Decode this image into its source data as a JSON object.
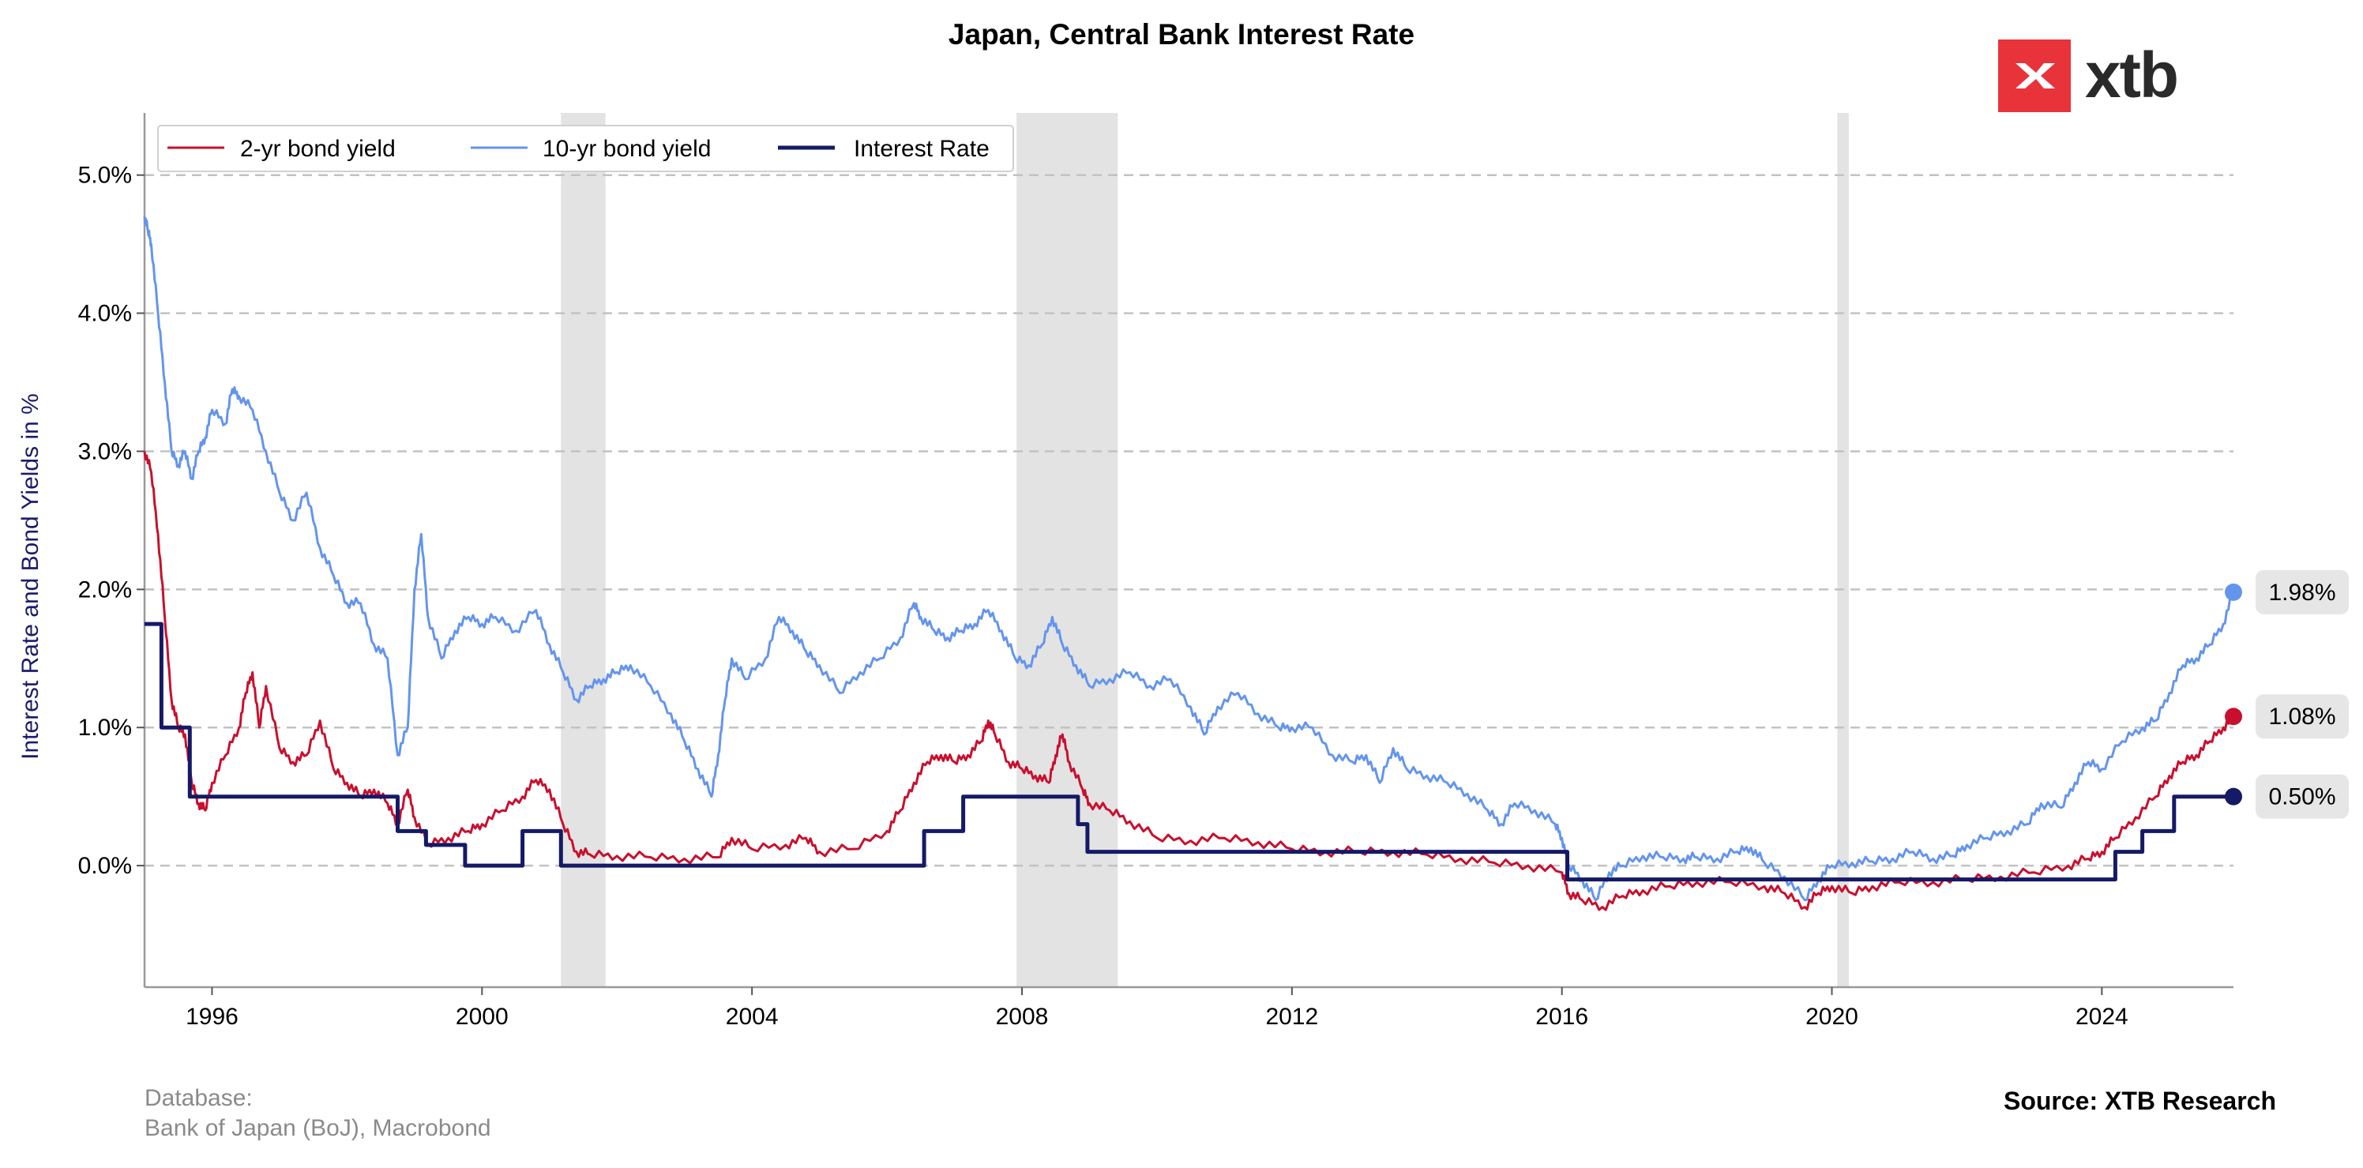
{
  "chart_data": {
    "type": "line",
    "title": "Japan, Central Bank Interest Rate",
    "ylabel": "Interest Rate and Bond Yields in %",
    "xlabel": "",
    "xlim": [
      1995.0,
      2025.95
    ],
    "ylim": [
      -0.88,
      5.45
    ],
    "x_ticks": [
      1996,
      2000,
      2004,
      2008,
      2012,
      2016,
      2020,
      2024
    ],
    "x_tick_labels": [
      "1996",
      "2000",
      "2004",
      "2008",
      "2012",
      "2016",
      "2020",
      "2024"
    ],
    "y_ticks": [
      0,
      1,
      2,
      3,
      4,
      5
    ],
    "y_tick_labels": [
      "0.0%",
      "1.0%",
      "2.0%",
      "3.0%",
      "4.0%",
      "5.0%"
    ],
    "grid": "horizontal dashed",
    "legend_position": "top-left",
    "shaded_periods": [
      [
        2001.17,
        2001.83
      ],
      [
        2007.92,
        2009.42
      ],
      [
        2020.08,
        2020.25
      ]
    ],
    "series": [
      {
        "name": "2-yr bond yield",
        "color": "#c8102e",
        "style": "line",
        "last_value_label": "1.08%",
        "points": [
          [
            1995.0,
            3.0
          ],
          [
            1995.1,
            2.85
          ],
          [
            1995.2,
            2.4
          ],
          [
            1995.3,
            1.8
          ],
          [
            1995.4,
            1.2
          ],
          [
            1995.5,
            1.0
          ],
          [
            1995.6,
            0.95
          ],
          [
            1995.7,
            0.6
          ],
          [
            1995.8,
            0.45
          ],
          [
            1995.9,
            0.4
          ],
          [
            1996.0,
            0.6
          ],
          [
            1996.2,
            0.8
          ],
          [
            1996.4,
            1.0
          ],
          [
            1996.5,
            1.25
          ],
          [
            1996.6,
            1.4
          ],
          [
            1996.7,
            1.0
          ],
          [
            1996.8,
            1.3
          ],
          [
            1997.0,
            0.85
          ],
          [
            1997.2,
            0.75
          ],
          [
            1997.4,
            0.8
          ],
          [
            1997.6,
            1.05
          ],
          [
            1997.8,
            0.7
          ],
          [
            1998.0,
            0.6
          ],
          [
            1998.2,
            0.5
          ],
          [
            1998.4,
            0.55
          ],
          [
            1998.6,
            0.45
          ],
          [
            1998.75,
            0.3
          ],
          [
            1998.9,
            0.55
          ],
          [
            1999.0,
            0.35
          ],
          [
            1999.2,
            0.15
          ],
          [
            1999.5,
            0.2
          ],
          [
            1999.8,
            0.25
          ],
          [
            2000.0,
            0.3
          ],
          [
            2000.3,
            0.4
          ],
          [
            2000.6,
            0.5
          ],
          [
            2000.8,
            0.62
          ],
          [
            2001.0,
            0.55
          ],
          [
            2001.2,
            0.3
          ],
          [
            2001.4,
            0.1
          ],
          [
            2001.6,
            0.08
          ],
          [
            2002.0,
            0.07
          ],
          [
            2002.5,
            0.06
          ],
          [
            2003.0,
            0.05
          ],
          [
            2003.5,
            0.06
          ],
          [
            2003.7,
            0.2
          ],
          [
            2004.0,
            0.12
          ],
          [
            2004.5,
            0.15
          ],
          [
            2004.8,
            0.2
          ],
          [
            2005.0,
            0.1
          ],
          [
            2005.5,
            0.12
          ],
          [
            2006.0,
            0.25
          ],
          [
            2006.2,
            0.4
          ],
          [
            2006.4,
            0.6
          ],
          [
            2006.6,
            0.75
          ],
          [
            2006.8,
            0.8
          ],
          [
            2007.0,
            0.75
          ],
          [
            2007.2,
            0.8
          ],
          [
            2007.4,
            0.9
          ],
          [
            2007.5,
            1.05
          ],
          [
            2007.6,
            0.95
          ],
          [
            2007.8,
            0.75
          ],
          [
            2008.0,
            0.7
          ],
          [
            2008.2,
            0.65
          ],
          [
            2008.4,
            0.6
          ],
          [
            2008.5,
            0.8
          ],
          [
            2008.6,
            0.95
          ],
          [
            2008.7,
            0.75
          ],
          [
            2008.9,
            0.55
          ],
          [
            2009.0,
            0.45
          ],
          [
            2009.3,
            0.4
          ],
          [
            2009.6,
            0.32
          ],
          [
            2010.0,
            0.2
          ],
          [
            2010.5,
            0.18
          ],
          [
            2011.0,
            0.2
          ],
          [
            2011.5,
            0.17
          ],
          [
            2012.0,
            0.12
          ],
          [
            2012.5,
            0.1
          ],
          [
            2013.0,
            0.1
          ],
          [
            2013.5,
            0.1
          ],
          [
            2014.0,
            0.08
          ],
          [
            2014.5,
            0.05
          ],
          [
            2015.0,
            0.02
          ],
          [
            2015.5,
            0.0
          ],
          [
            2016.0,
            -0.05
          ],
          [
            2016.1,
            -0.2
          ],
          [
            2016.3,
            -0.25
          ],
          [
            2016.6,
            -0.3
          ],
          [
            2016.9,
            -0.22
          ],
          [
            2017.2,
            -0.18
          ],
          [
            2017.6,
            -0.15
          ],
          [
            2018.0,
            -0.12
          ],
          [
            2018.5,
            -0.12
          ],
          [
            2019.0,
            -0.15
          ],
          [
            2019.3,
            -0.2
          ],
          [
            2019.6,
            -0.3
          ],
          [
            2019.8,
            -0.2
          ],
          [
            2020.0,
            -0.15
          ],
          [
            2020.3,
            -0.2
          ],
          [
            2020.6,
            -0.15
          ],
          [
            2021.0,
            -0.12
          ],
          [
            2021.5,
            -0.12
          ],
          [
            2022.0,
            -0.1
          ],
          [
            2022.5,
            -0.08
          ],
          [
            2023.0,
            -0.05
          ],
          [
            2023.5,
            0.0
          ],
          [
            2023.8,
            0.05
          ],
          [
            2024.0,
            0.1
          ],
          [
            2024.2,
            0.2
          ],
          [
            2024.5,
            0.35
          ],
          [
            2024.8,
            0.5
          ],
          [
            2025.0,
            0.65
          ],
          [
            2025.2,
            0.75
          ],
          [
            2025.4,
            0.8
          ],
          [
            2025.6,
            0.9
          ],
          [
            2025.8,
            1.0
          ],
          [
            2025.95,
            1.08
          ]
        ]
      },
      {
        "name": "10-yr bond yield",
        "color": "#6495ed",
        "style": "line",
        "last_value_label": "1.98%",
        "points": [
          [
            1995.0,
            4.7
          ],
          [
            1995.05,
            4.6
          ],
          [
            1995.1,
            4.5
          ],
          [
            1995.2,
            4.0
          ],
          [
            1995.3,
            3.5
          ],
          [
            1995.4,
            3.0
          ],
          [
            1995.5,
            2.9
          ],
          [
            1995.6,
            3.0
          ],
          [
            1995.7,
            2.8
          ],
          [
            1995.8,
            3.0
          ],
          [
            1995.9,
            3.1
          ],
          [
            1996.0,
            3.3
          ],
          [
            1996.2,
            3.2
          ],
          [
            1996.3,
            3.45
          ],
          [
            1996.4,
            3.4
          ],
          [
            1996.6,
            3.3
          ],
          [
            1996.8,
            3.0
          ],
          [
            1997.0,
            2.7
          ],
          [
            1997.2,
            2.5
          ],
          [
            1997.4,
            2.7
          ],
          [
            1997.6,
            2.3
          ],
          [
            1997.8,
            2.1
          ],
          [
            1998.0,
            1.9
          ],
          [
            1998.2,
            1.9
          ],
          [
            1998.4,
            1.6
          ],
          [
            1998.6,
            1.5
          ],
          [
            1998.75,
            0.8
          ],
          [
            1998.9,
            1.0
          ],
          [
            1999.0,
            2.0
          ],
          [
            1999.1,
            2.4
          ],
          [
            1999.2,
            1.8
          ],
          [
            1999.4,
            1.5
          ],
          [
            1999.6,
            1.7
          ],
          [
            1999.8,
            1.8
          ],
          [
            2000.0,
            1.75
          ],
          [
            2000.2,
            1.8
          ],
          [
            2000.5,
            1.7
          ],
          [
            2000.8,
            1.85
          ],
          [
            2001.0,
            1.6
          ],
          [
            2001.2,
            1.4
          ],
          [
            2001.4,
            1.2
          ],
          [
            2001.6,
            1.3
          ],
          [
            2001.8,
            1.35
          ],
          [
            2002.0,
            1.4
          ],
          [
            2002.2,
            1.45
          ],
          [
            2002.5,
            1.3
          ],
          [
            2002.8,
            1.1
          ],
          [
            2003.0,
            0.9
          ],
          [
            2003.2,
            0.7
          ],
          [
            2003.4,
            0.5
          ],
          [
            2003.5,
            0.8
          ],
          [
            2003.6,
            1.2
          ],
          [
            2003.7,
            1.5
          ],
          [
            2003.9,
            1.35
          ],
          [
            2004.2,
            1.5
          ],
          [
            2004.4,
            1.8
          ],
          [
            2004.6,
            1.7
          ],
          [
            2004.8,
            1.55
          ],
          [
            2005.0,
            1.45
          ],
          [
            2005.3,
            1.25
          ],
          [
            2005.6,
            1.4
          ],
          [
            2005.9,
            1.5
          ],
          [
            2006.2,
            1.65
          ],
          [
            2006.4,
            1.9
          ],
          [
            2006.5,
            1.8
          ],
          [
            2006.7,
            1.7
          ],
          [
            2006.9,
            1.65
          ],
          [
            2007.1,
            1.7
          ],
          [
            2007.3,
            1.75
          ],
          [
            2007.5,
            1.85
          ],
          [
            2007.7,
            1.7
          ],
          [
            2007.9,
            1.5
          ],
          [
            2008.1,
            1.45
          ],
          [
            2008.3,
            1.6
          ],
          [
            2008.45,
            1.8
          ],
          [
            2008.6,
            1.6
          ],
          [
            2008.8,
            1.45
          ],
          [
            2009.0,
            1.3
          ],
          [
            2009.3,
            1.35
          ],
          [
            2009.6,
            1.4
          ],
          [
            2009.9,
            1.3
          ],
          [
            2010.2,
            1.35
          ],
          [
            2010.5,
            1.15
          ],
          [
            2010.7,
            0.95
          ],
          [
            2010.9,
            1.15
          ],
          [
            2011.2,
            1.25
          ],
          [
            2011.5,
            1.1
          ],
          [
            2011.8,
            1.0
          ],
          [
            2012.0,
            1.0
          ],
          [
            2012.3,
            1.0
          ],
          [
            2012.6,
            0.8
          ],
          [
            2012.9,
            0.75
          ],
          [
            2013.1,
            0.8
          ],
          [
            2013.3,
            0.6
          ],
          [
            2013.5,
            0.85
          ],
          [
            2013.7,
            0.7
          ],
          [
            2014.0,
            0.65
          ],
          [
            2014.3,
            0.6
          ],
          [
            2014.6,
            0.52
          ],
          [
            2014.9,
            0.4
          ],
          [
            2015.1,
            0.3
          ],
          [
            2015.3,
            0.45
          ],
          [
            2015.6,
            0.4
          ],
          [
            2015.9,
            0.3
          ],
          [
            2016.0,
            0.2
          ],
          [
            2016.1,
            0.0
          ],
          [
            2016.3,
            -0.1
          ],
          [
            2016.5,
            -0.25
          ],
          [
            2016.7,
            -0.05
          ],
          [
            2016.9,
            0.0
          ],
          [
            2017.2,
            0.07
          ],
          [
            2017.5,
            0.06
          ],
          [
            2017.8,
            0.05
          ],
          [
            2018.0,
            0.06
          ],
          [
            2018.3,
            0.05
          ],
          [
            2018.6,
            0.1
          ],
          [
            2018.8,
            0.13
          ],
          [
            2019.0,
            0.02
          ],
          [
            2019.3,
            -0.08
          ],
          [
            2019.6,
            -0.25
          ],
          [
            2019.8,
            -0.1
          ],
          [
            2020.0,
            0.0
          ],
          [
            2020.3,
            0.02
          ],
          [
            2020.6,
            0.03
          ],
          [
            2020.9,
            0.05
          ],
          [
            2021.2,
            0.1
          ],
          [
            2021.5,
            0.05
          ],
          [
            2021.8,
            0.07
          ],
          [
            2022.0,
            0.15
          ],
          [
            2022.3,
            0.2
          ],
          [
            2022.6,
            0.25
          ],
          [
            2022.9,
            0.3
          ],
          [
            2023.1,
            0.45
          ],
          [
            2023.4,
            0.42
          ],
          [
            2023.6,
            0.6
          ],
          [
            2023.8,
            0.75
          ],
          [
            2024.0,
            0.7
          ],
          [
            2024.3,
            0.9
          ],
          [
            2024.6,
            1.0
          ],
          [
            2024.8,
            1.05
          ],
          [
            2025.0,
            1.25
          ],
          [
            2025.2,
            1.45
          ],
          [
            2025.4,
            1.5
          ],
          [
            2025.6,
            1.6
          ],
          [
            2025.8,
            1.75
          ],
          [
            2025.95,
            1.98
          ]
        ]
      },
      {
        "name": "Interest Rate",
        "color": "#141a66",
        "style": "step",
        "last_value_label": "0.50%",
        "points": [
          [
            1995.0,
            1.75
          ],
          [
            1995.25,
            1.75
          ],
          [
            1995.25,
            1.0
          ],
          [
            1995.67,
            1.0
          ],
          [
            1995.67,
            0.5
          ],
          [
            1998.75,
            0.5
          ],
          [
            1998.75,
            0.25
          ],
          [
            1999.17,
            0.25
          ],
          [
            1999.17,
            0.15
          ],
          [
            1999.75,
            0.15
          ],
          [
            1999.75,
            0.0
          ],
          [
            2000.6,
            0.0
          ],
          [
            2000.6,
            0.25
          ],
          [
            2001.17,
            0.25
          ],
          [
            2001.17,
            0.0
          ],
          [
            2006.55,
            0.0
          ],
          [
            2006.55,
            0.25
          ],
          [
            2007.13,
            0.25
          ],
          [
            2007.13,
            0.5
          ],
          [
            2008.83,
            0.5
          ],
          [
            2008.83,
            0.3
          ],
          [
            2008.97,
            0.3
          ],
          [
            2008.97,
            0.1
          ],
          [
            2016.08,
            0.1
          ],
          [
            2016.08,
            -0.1
          ],
          [
            2024.2,
            -0.1
          ],
          [
            2024.2,
            0.1
          ],
          [
            2024.6,
            0.1
          ],
          [
            2024.6,
            0.25
          ],
          [
            2025.07,
            0.25
          ],
          [
            2025.07,
            0.5
          ],
          [
            2025.95,
            0.5
          ]
        ]
      }
    ]
  },
  "footer": {
    "database_label": "Database:",
    "database_value": "Bank of Japan (BoJ), Macrobond",
    "source": "Source: XTB Research"
  },
  "brand": {
    "name": "xtb",
    "accent": "#e8333a"
  }
}
